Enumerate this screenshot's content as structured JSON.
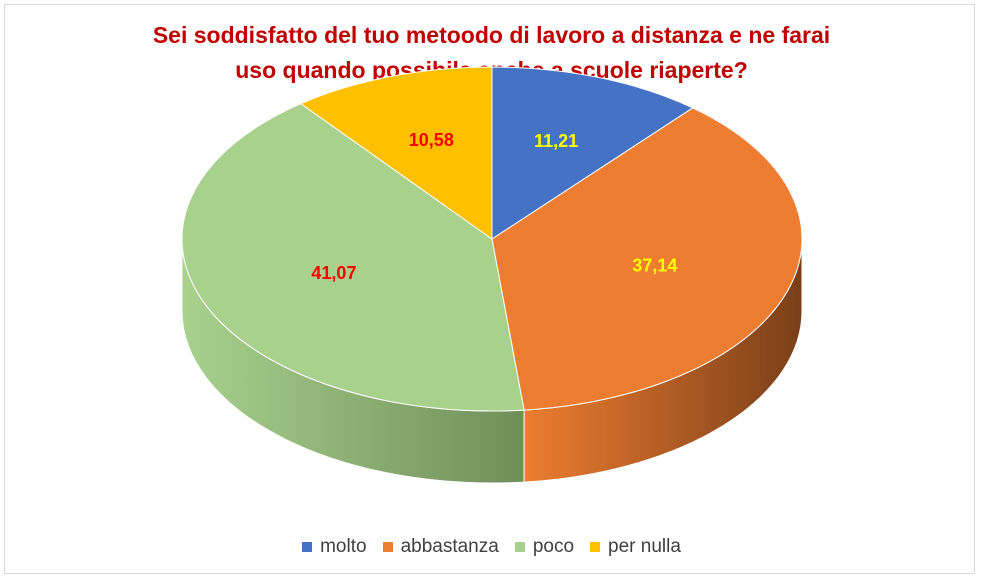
{
  "chart_data": {
    "type": "pie",
    "title_lines": [
      "Sei soddisfatto del tuo metoodo di lavoro a distanza e ne farai",
      "uso quando possibile anche a scuole riaperte?"
    ],
    "title_color": "#c00000",
    "slices": [
      {
        "label": "molto",
        "value": 11.21,
        "value_label": "11,21",
        "color": "#4472c4",
        "side_color": "#2f4f8a",
        "label_color": "#ffff00"
      },
      {
        "label": "abbastanza",
        "value": 37.14,
        "value_label": "37,14",
        "color": "#ed7d31",
        "side_color": "#7a3f18",
        "label_color": "#ffff00"
      },
      {
        "label": "poco",
        "value": 41.07,
        "value_label": "41,07",
        "color": "#a9d18e",
        "side_color": "#6f8f59",
        "label_color": "#ff0000"
      },
      {
        "label": "per nulla",
        "value": 10.58,
        "value_label": "10,58",
        "color": "#ffc000",
        "side_color": "#a67d00",
        "label_color": "#ff0000"
      }
    ],
    "legend_position": "bottom"
  }
}
